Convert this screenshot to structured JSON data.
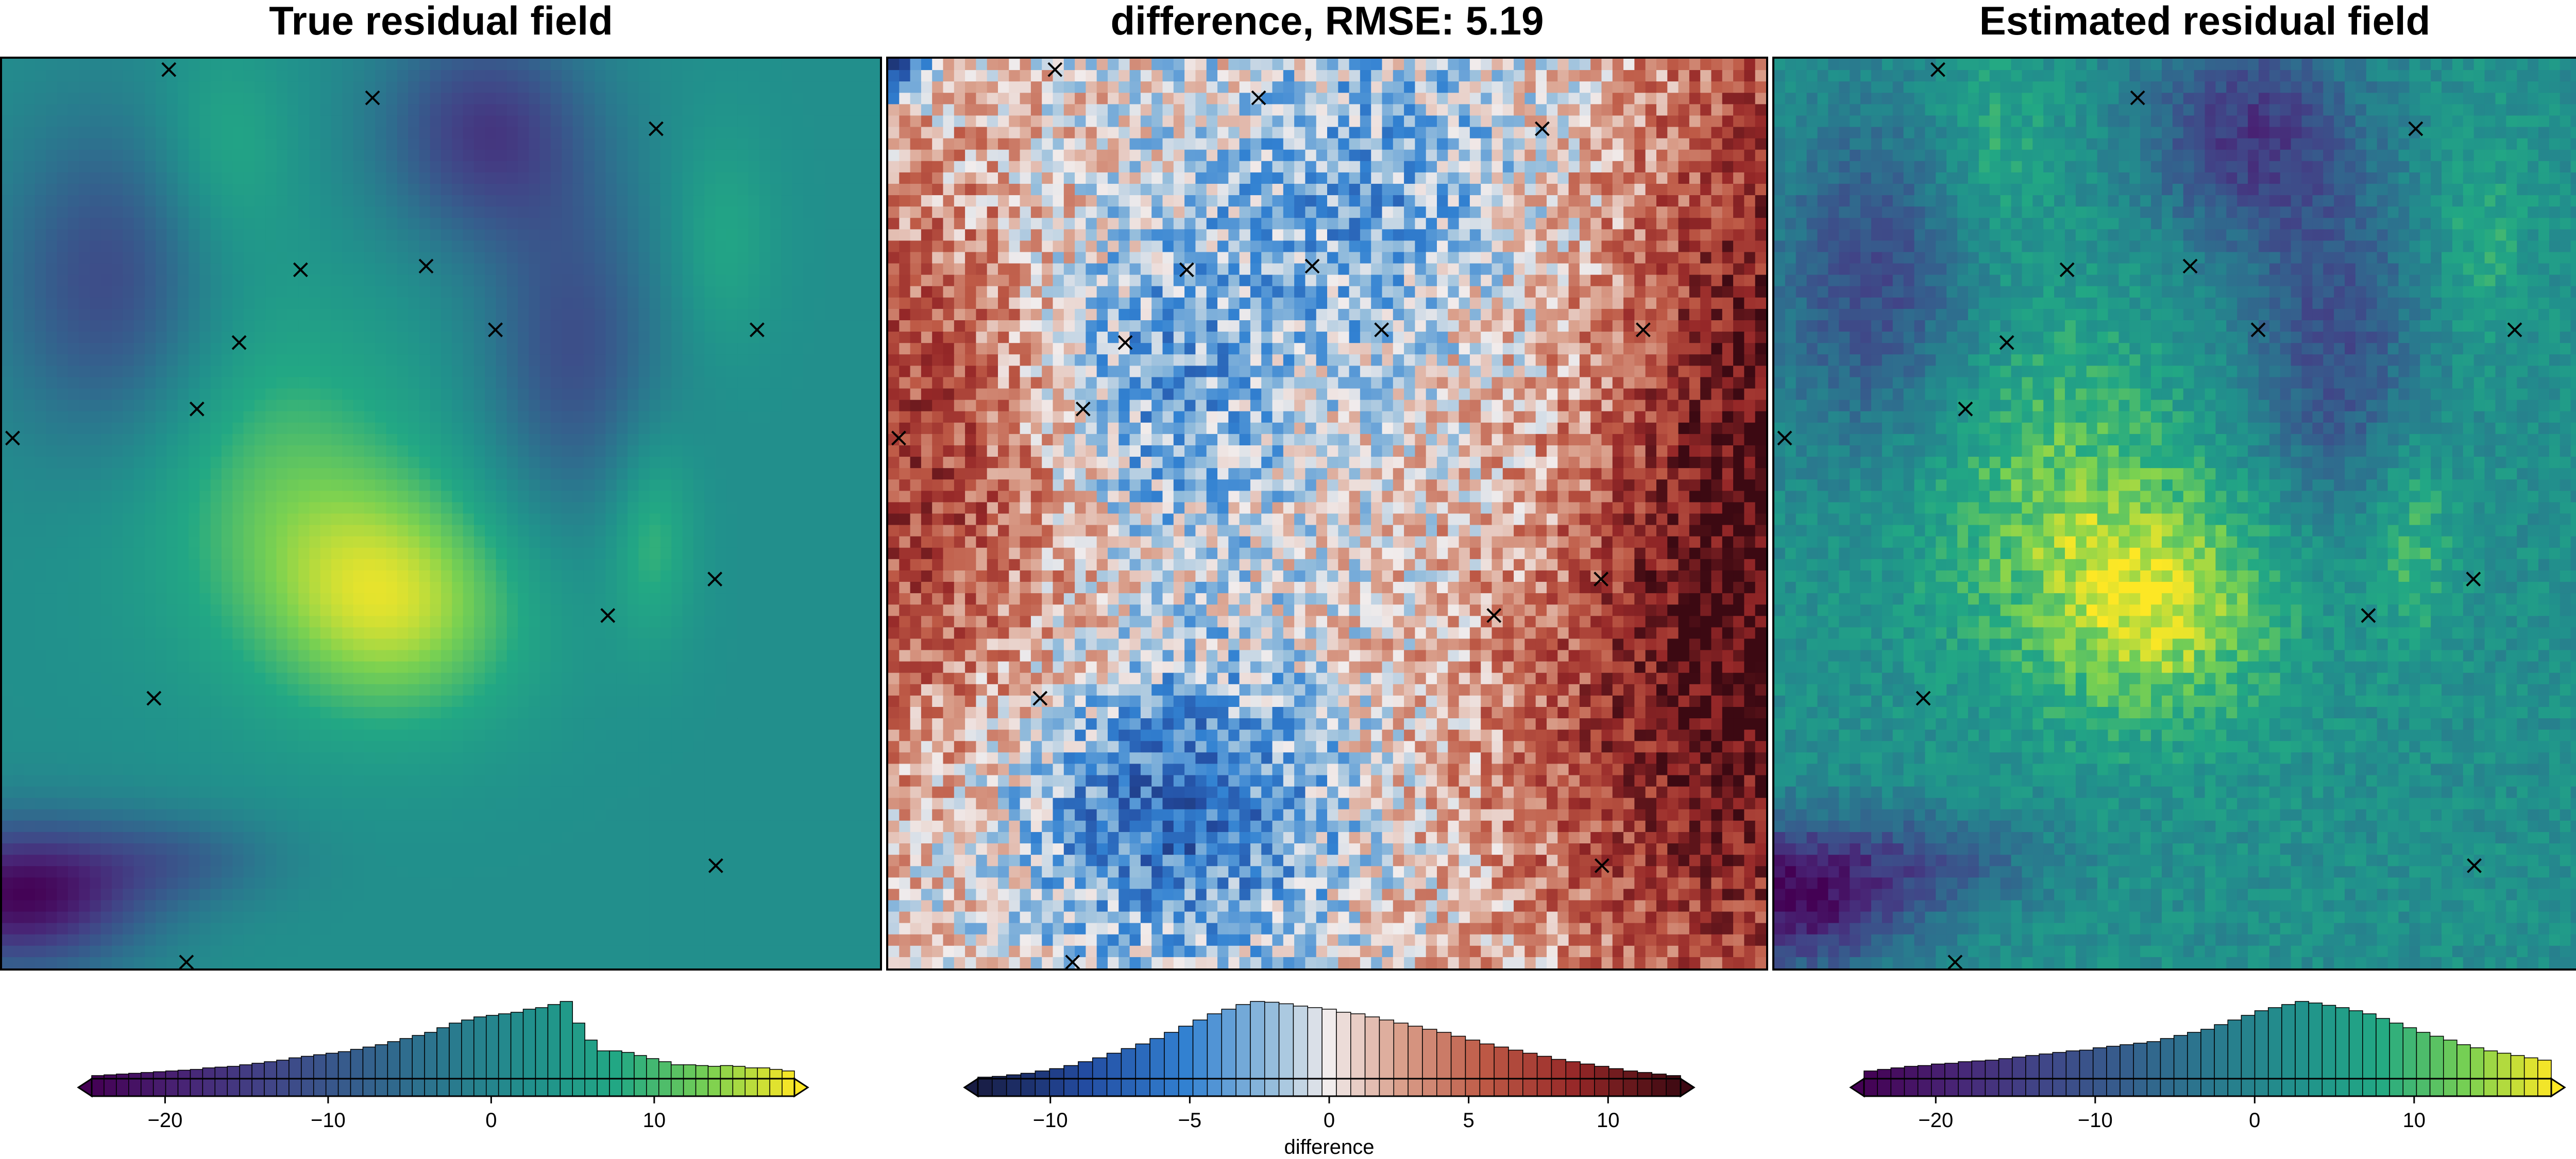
{
  "chart_data": [
    {
      "type": "heatmap",
      "title": "True residual field",
      "colormap": "viridis",
      "colorbar": {
        "label": "",
        "ticks": [
          -20,
          -10,
          0,
          10
        ],
        "range": [
          -24.5,
          18.6
        ]
      },
      "histogram": [
        0.04,
        0.05,
        0.06,
        0.07,
        0.08,
        0.09,
        0.1,
        0.11,
        0.12,
        0.14,
        0.15,
        0.16,
        0.18,
        0.2,
        0.22,
        0.24,
        0.27,
        0.29,
        0.31,
        0.33,
        0.35,
        0.38,
        0.41,
        0.44,
        0.48,
        0.52,
        0.56,
        0.6,
        0.66,
        0.72,
        0.76,
        0.8,
        0.82,
        0.84,
        0.86,
        0.9,
        0.92,
        0.96,
        1.0,
        0.72,
        0.5,
        0.36,
        0.36,
        0.34,
        0.3,
        0.26,
        0.22,
        0.18,
        0.18,
        0.17,
        0.16,
        0.17,
        0.16,
        0.14,
        0.14,
        0.12,
        0.1
      ]
    },
    {
      "type": "heatmap",
      "title": "difference, RMSE: 5.19",
      "colormap": "balance",
      "colorbar": {
        "label": "difference",
        "ticks": [
          -10,
          -5,
          0,
          5,
          10
        ],
        "range": [
          -12.6,
          12.6
        ]
      },
      "histogram": [
        0.02,
        0.03,
        0.05,
        0.07,
        0.1,
        0.13,
        0.17,
        0.22,
        0.27,
        0.33,
        0.39,
        0.45,
        0.52,
        0.6,
        0.68,
        0.76,
        0.84,
        0.9,
        0.96,
        1.0,
        0.99,
        0.97,
        0.94,
        0.92,
        0.9,
        0.86,
        0.84,
        0.8,
        0.76,
        0.72,
        0.68,
        0.64,
        0.6,
        0.55,
        0.5,
        0.45,
        0.41,
        0.37,
        0.33,
        0.29,
        0.25,
        0.22,
        0.19,
        0.16,
        0.13,
        0.1,
        0.08,
        0.06,
        0.04
      ]
    },
    {
      "type": "heatmap",
      "title": "Estimated residual field",
      "colormap": "viridis",
      "colorbar": {
        "label": "",
        "ticks": [
          -20,
          -10,
          0,
          10
        ],
        "range": [
          -24.5,
          18.6
        ]
      },
      "histogram": [
        0.1,
        0.12,
        0.14,
        0.16,
        0.17,
        0.19,
        0.2,
        0.22,
        0.23,
        0.24,
        0.26,
        0.28,
        0.3,
        0.32,
        0.34,
        0.36,
        0.37,
        0.4,
        0.42,
        0.44,
        0.46,
        0.48,
        0.52,
        0.56,
        0.6,
        0.64,
        0.7,
        0.76,
        0.82,
        0.88,
        0.92,
        0.96,
        1.0,
        0.98,
        0.95,
        0.92,
        0.88,
        0.84,
        0.78,
        0.72,
        0.66,
        0.6,
        0.55,
        0.5,
        0.44,
        0.4,
        0.36,
        0.33,
        0.3,
        0.27,
        0.24
      ]
    }
  ],
  "points": [
    {
      "x": 0.19,
      "y": 0.012
    },
    {
      "x": 0.422,
      "y": 0.043
    },
    {
      "x": 0.745,
      "y": 0.077
    },
    {
      "x": 0.34,
      "y": 0.232
    },
    {
      "x": 0.483,
      "y": 0.228
    },
    {
      "x": 0.27,
      "y": 0.312
    },
    {
      "x": 0.562,
      "y": 0.298
    },
    {
      "x": 0.86,
      "y": 0.298
    },
    {
      "x": 0.222,
      "y": 0.385
    },
    {
      "x": 0.012,
      "y": 0.417
    },
    {
      "x": 0.812,
      "y": 0.572
    },
    {
      "x": 0.69,
      "y": 0.612
    },
    {
      "x": 0.173,
      "y": 0.703
    },
    {
      "x": 0.813,
      "y": 0.887
    },
    {
      "x": 0.21,
      "y": 0.993
    }
  ]
}
